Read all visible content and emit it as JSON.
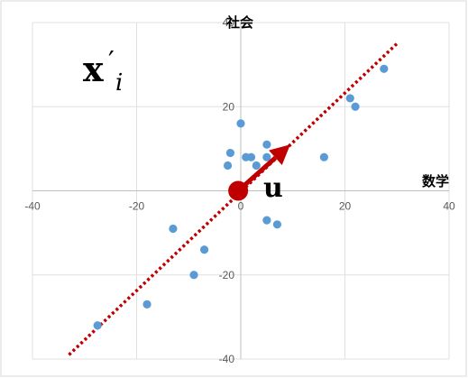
{
  "chart_data": {
    "type": "scatter",
    "title": "",
    "xlabel": "数学",
    "ylabel": "社会",
    "xlim": [
      -40,
      40
    ],
    "ylim": [
      -40,
      40
    ],
    "xticks": [
      -40,
      -20,
      0,
      20,
      40
    ],
    "yticks": [
      -40,
      -20,
      0,
      20,
      40
    ],
    "grid": true,
    "x": [
      -27.5,
      -18,
      -13,
      -9,
      -7,
      -2.5,
      -2,
      0,
      1,
      2,
      3,
      5,
      5,
      5,
      7,
      16,
      21,
      22,
      27.5
    ],
    "y": [
      -32,
      -27,
      -9,
      -20,
      -14,
      6,
      9,
      16,
      8,
      8,
      6,
      11,
      8,
      -7,
      -8,
      8,
      22,
      20,
      29
    ],
    "point_color": "#5b9bd5",
    "principal_line": {
      "from": [
        -33,
        -39
      ],
      "to": [
        30,
        35
      ],
      "color": "#c00000",
      "style": "dotted"
    },
    "vector_u": {
      "from": [
        -0.5,
        0
      ],
      "to": [
        9.5,
        11
      ],
      "color": "#c00000",
      "label": "u"
    },
    "annotation": {
      "prefix": "x",
      "prime": "′",
      "subscript": "i"
    }
  }
}
